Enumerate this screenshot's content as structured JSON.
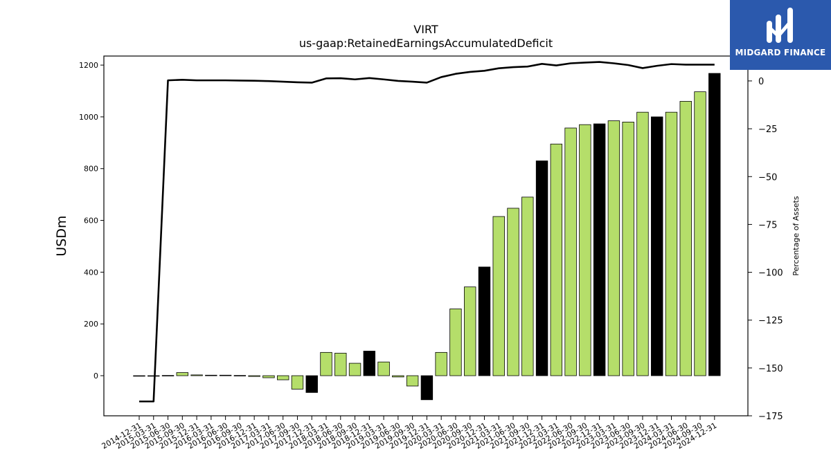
{
  "logo": {
    "text": "MIDGARD FINANCE",
    "icon": "midgard-logo-icon",
    "color": "#2b59ad"
  },
  "chart_data": {
    "type": "bar",
    "title": "VIRT",
    "subtitle": "us-gaap:RetainedEarningsAccumulatedDeficit",
    "ylabel": "USDm",
    "y2label": "Percentage of Assets",
    "ylim": [
      -155,
      1235
    ],
    "y2lim": [
      -175,
      13
    ],
    "yticks": [
      0,
      200,
      400,
      600,
      800,
      1000,
      1200
    ],
    "y2ticks": [
      -175,
      -150,
      -125,
      -100,
      -75,
      -50,
      -25,
      0
    ],
    "categories": [
      "2014-12-31",
      "2015-03-31",
      "2015-06-30",
      "2015-09-30",
      "2015-12-31",
      "2016-03-31",
      "2016-06-30",
      "2016-09-30",
      "2016-12-31",
      "2017-03-31",
      "2017-06-30",
      "2017-09-30",
      "2017-12-31",
      "2018-03-31",
      "2018-06-30",
      "2018-09-30",
      "2018-12-31",
      "2019-03-31",
      "2019-06-30",
      "2019-09-30",
      "2019-12-31",
      "2020-03-31",
      "2020-06-30",
      "2020-09-30",
      "2020-12-31",
      "2021-03-31",
      "2021-06-30",
      "2021-09-30",
      "2021-12-31",
      "2022-03-31",
      "2022-06-30",
      "2022-09-30",
      "2022-12-31",
      "2023-03-31",
      "2023-06-30",
      "2023-09-30",
      "2023-12-31",
      "2024-03-31",
      "2024-06-30",
      "2024-09-30",
      "2024-12-31"
    ],
    "series": [
      {
        "type": "bar",
        "values": [
          0,
          0,
          1,
          12,
          3,
          2,
          2,
          1,
          -3,
          -8,
          -16,
          -52,
          -65,
          90,
          87,
          48,
          95,
          53,
          -5,
          -40,
          -93,
          90,
          258,
          343,
          420,
          615,
          647,
          690,
          830,
          895,
          957,
          970,
          973,
          985,
          980,
          1018,
          1000,
          1018,
          1060,
          1097,
          1168
        ],
        "colors": [
          "#b5de6a",
          "#b5de6a",
          "#b5de6a",
          "#b5de6a",
          "#b5de6a",
          "#b5de6a",
          "#b5de6a",
          "#b5de6a",
          "#b5de6a",
          "#b5de6a",
          "#b5de6a",
          "#b5de6a",
          "#000000",
          "#b5de6a",
          "#b5de6a",
          "#b5de6a",
          "#000000",
          "#b5de6a",
          "#b5de6a",
          "#b5de6a",
          "#000000",
          "#b5de6a",
          "#b5de6a",
          "#b5de6a",
          "#000000",
          "#b5de6a",
          "#b5de6a",
          "#b5de6a",
          "#000000",
          "#b5de6a",
          "#b5de6a",
          "#b5de6a",
          "#000000",
          "#b5de6a",
          "#b5de6a",
          "#b5de6a",
          "#000000",
          "#b5de6a",
          "#b5de6a",
          "#b5de6a",
          "#000000"
        ]
      },
      {
        "type": "line",
        "axis": "right",
        "color": "#000000",
        "values": [
          -167.5,
          -167.5,
          0.3,
          0.6,
          0.3,
          0.3,
          0.3,
          0.2,
          0.1,
          -0.1,
          -0.4,
          -0.7,
          -0.9,
          1.3,
          1.4,
          0.8,
          1.5,
          0.8,
          0.0,
          -0.4,
          -0.9,
          2.0,
          3.7,
          4.7,
          5.3,
          6.6,
          7.2,
          7.5,
          8.9,
          8.1,
          9.2,
          9.6,
          9.9,
          9.2,
          8.3,
          6.7,
          7.9,
          8.8,
          8.5,
          8.5,
          8.5
        ]
      }
    ]
  }
}
